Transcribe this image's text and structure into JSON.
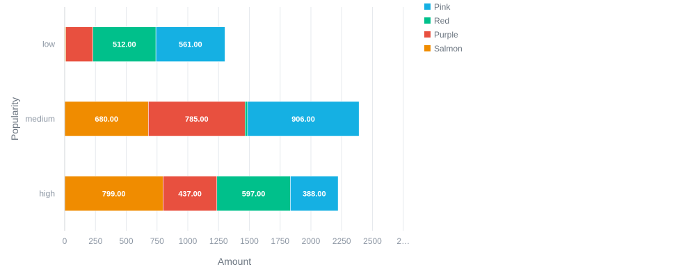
{
  "chart_data": {
    "type": "bar",
    "orientation": "horizontal",
    "stacked": true,
    "categories": [
      "low",
      "medium",
      "high"
    ],
    "series": [
      {
        "name": "Salmon",
        "color": "#f08c00",
        "values": [
          9,
          680,
          799
        ]
      },
      {
        "name": "Purple",
        "color": "#e8503f",
        "values": [
          220,
          785,
          437
        ]
      },
      {
        "name": "Red",
        "color": "#00c08b",
        "values": [
          512,
          20,
          597
        ]
      },
      {
        "name": "Pink",
        "color": "#15b0e3",
        "values": [
          561,
          906,
          388
        ]
      }
    ],
    "legend_order": [
      "Pink",
      "Red",
      "Purple",
      "Salmon"
    ],
    "x_ticks": [
      "0",
      "250",
      "500",
      "750",
      "1000",
      "1250",
      "1500",
      "1750",
      "2000",
      "2250",
      "2500",
      "2…"
    ],
    "xlim": [
      0,
      2750
    ],
    "xlabel": "Amount",
    "ylabel": "Popularity",
    "grid": true,
    "legend_placement": "top-right",
    "label_threshold": 300
  }
}
